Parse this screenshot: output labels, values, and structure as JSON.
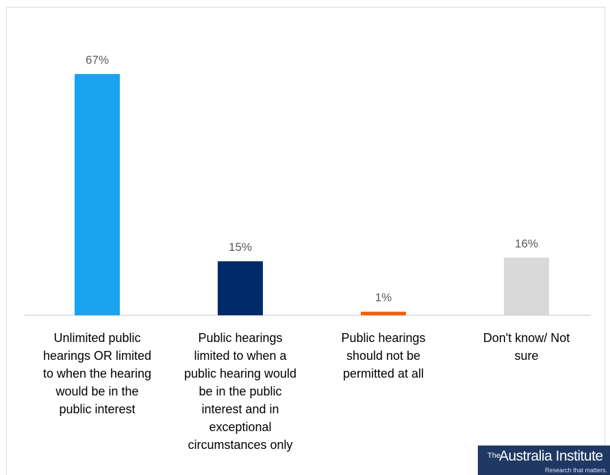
{
  "chart_data": {
    "type": "bar",
    "categories": [
      "Unlimited public hearings OR limited to when the hearing would be in the public interest",
      "Public hearings limited to when a public hearing would be in the public interest and in exceptional circumstances only",
      "Public hearings should not be permitted at all",
      "Don't know/ Not sure"
    ],
    "category_lines": [
      [
        "Unlimited public",
        "hearings OR limited",
        "to when the hearing",
        "would be in the",
        "public interest"
      ],
      [
        "Public hearings",
        "limited to when a",
        "public hearing would",
        "be in the public",
        "interest and in",
        "exceptional",
        "circumstances only"
      ],
      [
        "Public hearings",
        "should not be",
        "permitted at all"
      ],
      [
        "Don't know/ Not",
        "sure"
      ]
    ],
    "values": [
      67,
      15,
      1,
      16
    ],
    "value_labels": [
      "67%",
      "15%",
      "1%",
      "16%"
    ],
    "colors": [
      "#1aa3f0",
      "#002b6b",
      "#f4600c",
      "#d9d9d9"
    ],
    "ylim": [
      0,
      67
    ],
    "grid": false,
    "legend": "none"
  },
  "logo": {
    "sup": "The",
    "name": "Australia Institute",
    "tagline": "Research that matters."
  }
}
